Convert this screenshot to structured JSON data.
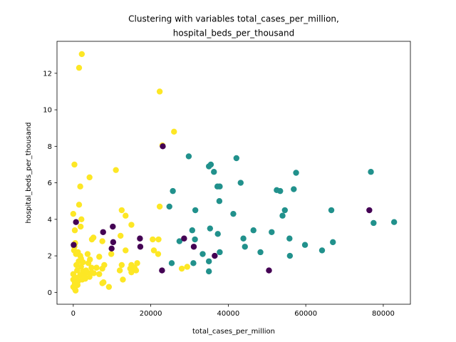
{
  "chart_data": {
    "type": "scatter",
    "title_lines": [
      "Clustering with variables total_cases_per_million,",
      "hospital_beds_per_thousand"
    ],
    "xlabel": "total_cases_per_million",
    "ylabel": "hospital_beds_per_thousand",
    "xlim": [
      -4200,
      87000
    ],
    "ylim": [
      -0.65,
      13.75
    ],
    "xticks": [
      0,
      20000,
      40000,
      60000,
      80000
    ],
    "yticks": [
      0,
      2,
      4,
      6,
      8,
      10,
      12
    ],
    "grid": false,
    "legend": "none",
    "series": [
      {
        "color": "#fde725",
        "points": [
          [
            2200,
            13.05
          ],
          [
            1500,
            12.3
          ],
          [
            22300,
            11.0
          ],
          [
            26000,
            8.8
          ],
          [
            23000,
            8.05
          ],
          [
            300,
            7.0
          ],
          [
            11000,
            6.7
          ],
          [
            4200,
            6.3
          ],
          [
            1800,
            5.8
          ],
          [
            1500,
            4.8
          ],
          [
            22300,
            4.7
          ],
          [
            12500,
            4.5
          ],
          [
            0,
            4.3
          ],
          [
            13500,
            4.2
          ],
          [
            2100,
            4.0
          ],
          [
            15000,
            3.7
          ],
          [
            400,
            3.4
          ],
          [
            1900,
            3.6
          ],
          [
            5200,
            3.0
          ],
          [
            4800,
            2.9
          ],
          [
            7500,
            2.8
          ],
          [
            12200,
            3.1
          ],
          [
            20500,
            2.9
          ],
          [
            22000,
            2.9
          ],
          [
            500,
            2.7
          ],
          [
            300,
            2.5
          ],
          [
            13500,
            2.3
          ],
          [
            20800,
            2.3
          ],
          [
            21900,
            2.1
          ],
          [
            9800,
            2.1
          ],
          [
            200,
            2.3
          ],
          [
            700,
            2.1
          ],
          [
            1200,
            2.2
          ],
          [
            1800,
            2.0
          ],
          [
            3700,
            2.1
          ],
          [
            6700,
            1.95
          ],
          [
            4300,
            1.8
          ],
          [
            1400,
            1.7
          ],
          [
            2500,
            1.65
          ],
          [
            3900,
            1.6
          ],
          [
            8000,
            1.5
          ],
          [
            12500,
            1.5
          ],
          [
            15000,
            1.5
          ],
          [
            16500,
            1.6
          ],
          [
            800,
            1.5
          ],
          [
            2000,
            1.4
          ],
          [
            4700,
            1.35
          ],
          [
            6000,
            1.35
          ],
          [
            7500,
            1.3
          ],
          [
            14700,
            1.3
          ],
          [
            15800,
            1.35
          ],
          [
            12000,
            1.2
          ],
          [
            1000,
            1.2
          ],
          [
            2500,
            1.15
          ],
          [
            3500,
            1.1
          ],
          [
            4700,
            1.1
          ],
          [
            15000,
            1.1
          ],
          [
            6700,
            1.0
          ],
          [
            0,
            1.0
          ],
          [
            1800,
            0.95
          ],
          [
            2800,
            0.9
          ],
          [
            4200,
            0.85
          ],
          [
            0,
            0.7
          ],
          [
            900,
            0.8
          ],
          [
            2300,
            0.7
          ],
          [
            3100,
            0.75
          ],
          [
            12800,
            0.7
          ],
          [
            400,
            0.5
          ],
          [
            7800,
            0.55
          ],
          [
            7500,
            0.5
          ],
          [
            1100,
            0.4
          ],
          [
            0,
            0.3
          ],
          [
            400,
            0.2
          ],
          [
            600,
            0.1
          ],
          [
            9200,
            0.3
          ],
          [
            28000,
            1.3
          ],
          [
            29400,
            1.4
          ],
          [
            1200,
            0.6
          ],
          [
            2000,
            1.85
          ],
          [
            3300,
            1.2
          ],
          [
            16200,
            1.2
          ],
          [
            5300,
            1.05
          ]
        ]
      },
      {
        "color": "#21918c",
        "points": [
          [
            29800,
            7.45
          ],
          [
            35500,
            7.0
          ],
          [
            42100,
            7.35
          ],
          [
            35000,
            6.9
          ],
          [
            36300,
            6.6
          ],
          [
            57500,
            6.55
          ],
          [
            76800,
            6.6
          ],
          [
            43200,
            6.0
          ],
          [
            25700,
            5.55
          ],
          [
            37200,
            5.8
          ],
          [
            37800,
            5.8
          ],
          [
            52500,
            5.6
          ],
          [
            53400,
            5.55
          ],
          [
            56900,
            5.65
          ],
          [
            37700,
            5.0
          ],
          [
            24800,
            4.7
          ],
          [
            31500,
            4.5
          ],
          [
            41300,
            4.3
          ],
          [
            54600,
            4.5
          ],
          [
            66600,
            4.5
          ],
          [
            54000,
            4.2
          ],
          [
            35300,
            3.5
          ],
          [
            46500,
            3.4
          ],
          [
            51200,
            3.3
          ],
          [
            30700,
            3.4
          ],
          [
            37300,
            3.2
          ],
          [
            43900,
            2.95
          ],
          [
            55800,
            2.95
          ],
          [
            27400,
            2.8
          ],
          [
            31400,
            2.9
          ],
          [
            44300,
            2.5
          ],
          [
            59800,
            2.6
          ],
          [
            67000,
            2.75
          ],
          [
            48300,
            2.2
          ],
          [
            64200,
            2.3
          ],
          [
            77500,
            3.8
          ],
          [
            82800,
            3.85
          ],
          [
            33400,
            2.1
          ],
          [
            37800,
            2.2
          ],
          [
            55900,
            2.0
          ],
          [
            25400,
            1.6
          ],
          [
            31000,
            1.6
          ],
          [
            35000,
            1.7
          ],
          [
            35000,
            1.15
          ]
        ]
      },
      {
        "color": "#440154",
        "points": [
          [
            23100,
            8.0
          ],
          [
            700,
            3.85
          ],
          [
            7700,
            3.3
          ],
          [
            10200,
            3.6
          ],
          [
            17200,
            2.95
          ],
          [
            28600,
            2.95
          ],
          [
            10300,
            2.75
          ],
          [
            100,
            2.6
          ],
          [
            17300,
            2.5
          ],
          [
            31100,
            2.5
          ],
          [
            9900,
            2.4
          ],
          [
            36500,
            2.0
          ],
          [
            22900,
            1.2
          ],
          [
            50500,
            1.2
          ],
          [
            76400,
            4.5
          ]
        ]
      }
    ]
  }
}
